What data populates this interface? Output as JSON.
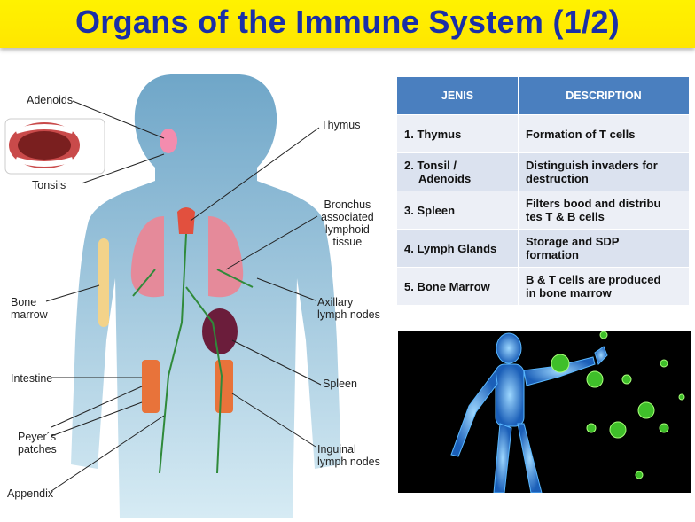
{
  "title": "Organs of the Immune System (1/2)",
  "diagram": {
    "labels": {
      "adenoids": "Adenoids",
      "tonsils": "Tonsils",
      "thymus": "Thymus",
      "bronchus": [
        "Bronchus",
        "associated",
        "lymphoid",
        "tissue"
      ],
      "bone_marrow": [
        "Bone",
        "marrow"
      ],
      "axillary": [
        "Axillary",
        "lymph nodes"
      ],
      "intestine": "Intestine",
      "spleen": "Spleen",
      "peyers": [
        "Peyer´s",
        "patches"
      ],
      "inguinal": [
        "Inguinal",
        "lymph nodes"
      ],
      "appendix": "Appendix"
    },
    "colors": {
      "body": "#9fc6dc",
      "node": "#2f8a3a",
      "lung": "#e58a9a",
      "spleen": "#6b1d3b",
      "bone": "#f3d38a"
    }
  },
  "table": {
    "headers": [
      "JENIS",
      "DESCRIPTION"
    ],
    "rows": [
      {
        "jenis": [
          "1. Thymus"
        ],
        "desc": [
          "Formation of T cells"
        ]
      },
      {
        "jenis": [
          "2. Tonsil /",
          "Adenoids"
        ],
        "desc": [
          "Distinguish invaders for",
          "destruction"
        ]
      },
      {
        "jenis": [
          "3. Spleen"
        ],
        "desc": [
          "Filters bood and distribu",
          "tes T & B cells"
        ]
      },
      {
        "jenis": [
          "4. Lymph Glands"
        ],
        "desc": [
          "Storage and SDP",
          "formation"
        ]
      },
      {
        "jenis": [
          "5. Bone Marrow"
        ],
        "desc": [
          "B & T cells are produced",
          "in bone marrow"
        ]
      }
    ],
    "header_color": "#4a7fbf"
  }
}
